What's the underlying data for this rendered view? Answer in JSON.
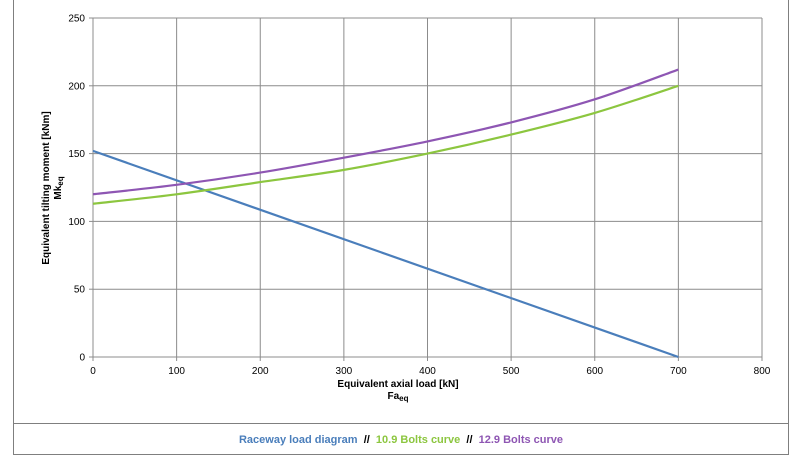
{
  "chart_data": {
    "type": "line",
    "xlabel": "Equivalent axial load [kN]",
    "xlabel_sub": "Fa",
    "xlabel_sub_suffix": "eq",
    "ylabel": "Equivalent tilting moment [kNm]",
    "ylabel_sub": "Mk",
    "ylabel_sub_suffix": "eq",
    "xlim": [
      0,
      800
    ],
    "ylim": [
      0,
      250
    ],
    "xticks": [
      0,
      100,
      200,
      300,
      400,
      500,
      600,
      700,
      800
    ],
    "yticks": [
      0,
      50,
      100,
      150,
      200,
      250
    ],
    "grid": true,
    "series": [
      {
        "name": "Raceway load diagram",
        "color": "#4a7ebb",
        "x": [
          0,
          700
        ],
        "y": [
          152,
          0
        ]
      },
      {
        "name": "10.9 Bolts curve",
        "color": "#8cc63f",
        "x": [
          0,
          100,
          200,
          300,
          400,
          500,
          600,
          700
        ],
        "y": [
          113,
          120,
          129,
          138,
          150,
          164,
          180,
          200
        ]
      },
      {
        "name": "12.9 Bolts curve",
        "color": "#8e56b3",
        "x": [
          0,
          100,
          200,
          300,
          400,
          500,
          600,
          700
        ],
        "y": [
          120,
          127,
          136,
          147,
          159,
          173,
          190,
          212
        ]
      }
    ]
  },
  "legend": {
    "separator": "  //  "
  }
}
